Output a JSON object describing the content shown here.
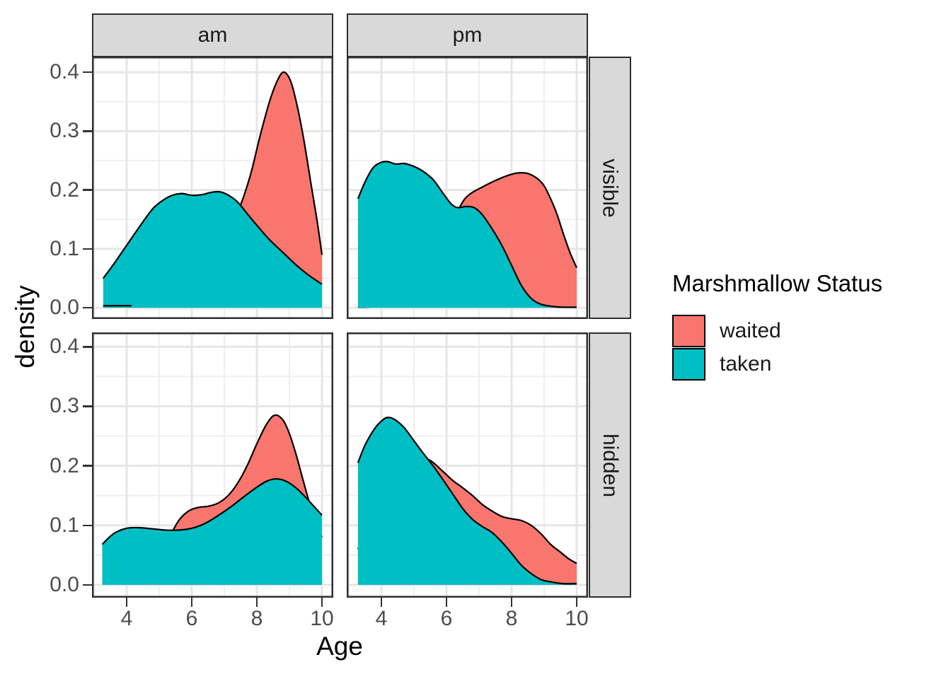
{
  "axes": {
    "x_label": "Age",
    "y_label": "density",
    "x_ticks": [
      {
        "label": "4",
        "value": 4
      },
      {
        "label": "6",
        "value": 6
      },
      {
        "label": "8",
        "value": 8
      },
      {
        "label": "10",
        "value": 10
      }
    ],
    "y_ticks": [
      {
        "label": "0.0",
        "value": 0.0
      },
      {
        "label": "0.1",
        "value": 0.1
      },
      {
        "label": "0.2",
        "value": 0.2
      },
      {
        "label": "0.3",
        "value": 0.3
      },
      {
        "label": "0.4",
        "value": 0.4
      }
    ]
  },
  "facets": {
    "col_labels": [
      "am",
      "pm"
    ],
    "row_labels": [
      "visible",
      "hidden"
    ]
  },
  "legend": {
    "title": "Marshmallow Status",
    "items": [
      {
        "label": "waited",
        "color": "#F8766D"
      },
      {
        "label": "taken",
        "color": "#00BFC4"
      }
    ]
  },
  "chart_data": {
    "type": "area",
    "subtype": "faceted overlapping density curves",
    "x_range_shown": [
      2.94,
      10.35
    ],
    "y_range_shown": [
      0,
      0.42
    ],
    "grid": {
      "x_major": [
        4,
        6,
        8,
        10
      ],
      "x_minor": [
        3,
        5,
        7,
        9
      ],
      "y_major": [
        0.0,
        0.1,
        0.2,
        0.3,
        0.4
      ],
      "y_minor": [
        0.05,
        0.15,
        0.25,
        0.35
      ]
    },
    "panels": [
      {
        "id": "am_visible",
        "col": 0,
        "row": 0,
        "facet_col": "am",
        "facet_row": "visible",
        "series": [
          {
            "name": "waited",
            "points": [
              [
                3.28,
                0.003
              ],
              [
                3.7,
                0.003
              ],
              [
                4.15,
                0.004
              ],
              [
                4.6,
                0.008
              ],
              [
                5.0,
                0.014
              ],
              [
                5.5,
                0.028
              ],
              [
                6.0,
                0.05
              ],
              [
                6.5,
                0.082
              ],
              [
                7.0,
                0.122
              ],
              [
                7.45,
                0.168
              ],
              [
                7.8,
                0.225
              ],
              [
                8.1,
                0.292
              ],
              [
                8.4,
                0.352
              ],
              [
                8.65,
                0.388
              ],
              [
                8.84,
                0.4
              ],
              [
                9.05,
                0.383
              ],
              [
                9.25,
                0.34
              ],
              [
                9.45,
                0.283
              ],
              [
                9.65,
                0.215
              ],
              [
                9.85,
                0.148
              ],
              [
                10.0,
                0.09
              ]
            ]
          },
          {
            "name": "taken",
            "points": [
              [
                3.28,
                0.05
              ],
              [
                3.6,
                0.074
              ],
              [
                4.0,
                0.106
              ],
              [
                4.4,
                0.138
              ],
              [
                4.8,
                0.168
              ],
              [
                5.1,
                0.182
              ],
              [
                5.4,
                0.191
              ],
              [
                5.7,
                0.194
              ],
              [
                6.0,
                0.191
              ],
              [
                6.3,
                0.192
              ],
              [
                6.6,
                0.196
              ],
              [
                6.85,
                0.197
              ],
              [
                7.1,
                0.192
              ],
              [
                7.4,
                0.18
              ],
              [
                7.7,
                0.16
              ],
              [
                8.0,
                0.14
              ],
              [
                8.4,
                0.115
              ],
              [
                8.8,
                0.094
              ],
              [
                9.2,
                0.073
              ],
              [
                9.6,
                0.055
              ],
              [
                10.0,
                0.04
              ]
            ]
          }
        ]
      },
      {
        "id": "pm_visible",
        "col": 1,
        "row": 0,
        "facet_col": "pm",
        "facet_row": "visible",
        "series": [
          {
            "name": "waited",
            "points": [
              [
                3.28,
                0.001
              ],
              [
                3.8,
                0.002
              ],
              [
                4.3,
                0.007
              ],
              [
                4.8,
                0.018
              ],
              [
                5.2,
                0.038
              ],
              [
                5.6,
                0.068
              ],
              [
                6.0,
                0.112
              ],
              [
                6.3,
                0.158
              ],
              [
                6.55,
                0.184
              ],
              [
                6.8,
                0.196
              ],
              [
                7.1,
                0.205
              ],
              [
                7.5,
                0.216
              ],
              [
                7.9,
                0.225
              ],
              [
                8.2,
                0.229
              ],
              [
                8.5,
                0.228
              ],
              [
                8.8,
                0.219
              ],
              [
                9.0,
                0.207
              ],
              [
                9.2,
                0.185
              ],
              [
                9.4,
                0.158
              ],
              [
                9.6,
                0.124
              ],
              [
                9.8,
                0.093
              ],
              [
                10.0,
                0.068
              ]
            ]
          },
          {
            "name": "taken",
            "points": [
              [
                3.28,
                0.185
              ],
              [
                3.5,
                0.214
              ],
              [
                3.75,
                0.238
              ],
              [
                4.0,
                0.247
              ],
              [
                4.2,
                0.248
              ],
              [
                4.45,
                0.244
              ],
              [
                4.7,
                0.245
              ],
              [
                5.0,
                0.24
              ],
              [
                5.3,
                0.231
              ],
              [
                5.6,
                0.217
              ],
              [
                5.9,
                0.194
              ],
              [
                6.15,
                0.176
              ],
              [
                6.35,
                0.17
              ],
              [
                6.6,
                0.172
              ],
              [
                6.85,
                0.17
              ],
              [
                7.1,
                0.158
              ],
              [
                7.4,
                0.134
              ],
              [
                7.7,
                0.106
              ],
              [
                8.0,
                0.072
              ],
              [
                8.3,
                0.038
              ],
              [
                8.6,
                0.016
              ],
              [
                8.9,
                0.006
              ],
              [
                9.3,
                0.002
              ],
              [
                9.6,
                0.001
              ],
              [
                10.0,
                0.001
              ]
            ]
          }
        ]
      },
      {
        "id": "am_hidden",
        "col": 0,
        "row": 1,
        "facet_col": "am",
        "facet_row": "hidden",
        "series": [
          {
            "name": "waited",
            "points": [
              [
                3.25,
                0.002
              ],
              [
                3.8,
                0.003
              ],
              [
                4.3,
                0.007
              ],
              [
                4.7,
                0.018
              ],
              [
                5.0,
                0.042
              ],
              [
                5.3,
                0.078
              ],
              [
                5.6,
                0.108
              ],
              [
                5.9,
                0.124
              ],
              [
                6.2,
                0.13
              ],
              [
                6.5,
                0.132
              ],
              [
                6.8,
                0.137
              ],
              [
                7.1,
                0.149
              ],
              [
                7.4,
                0.17
              ],
              [
                7.7,
                0.2
              ],
              [
                8.0,
                0.237
              ],
              [
                8.3,
                0.27
              ],
              [
                8.55,
                0.285
              ],
              [
                8.8,
                0.277
              ],
              [
                9.0,
                0.254
              ],
              [
                9.2,
                0.22
              ],
              [
                9.4,
                0.18
              ],
              [
                9.6,
                0.141
              ],
              [
                9.8,
                0.107
              ],
              [
                10.0,
                0.08
              ]
            ]
          },
          {
            "name": "taken",
            "points": [
              [
                3.25,
                0.068
              ],
              [
                3.6,
                0.086
              ],
              [
                4.0,
                0.095
              ],
              [
                4.4,
                0.096
              ],
              [
                4.8,
                0.094
              ],
              [
                5.2,
                0.092
              ],
              [
                5.6,
                0.092
              ],
              [
                6.0,
                0.095
              ],
              [
                6.4,
                0.103
              ],
              [
                6.8,
                0.116
              ],
              [
                7.2,
                0.131
              ],
              [
                7.6,
                0.148
              ],
              [
                8.0,
                0.164
              ],
              [
                8.3,
                0.174
              ],
              [
                8.6,
                0.178
              ],
              [
                8.9,
                0.174
              ],
              [
                9.2,
                0.163
              ],
              [
                9.5,
                0.147
              ],
              [
                9.75,
                0.132
              ],
              [
                10.0,
                0.117
              ]
            ]
          }
        ]
      },
      {
        "id": "pm_hidden",
        "col": 1,
        "row": 1,
        "facet_col": "pm",
        "facet_row": "hidden",
        "series": [
          {
            "name": "waited",
            "points": [
              [
                3.28,
                0.06
              ],
              [
                3.7,
                0.11
              ],
              [
                4.1,
                0.155
              ],
              [
                4.5,
                0.19
              ],
              [
                4.9,
                0.208
              ],
              [
                5.2,
                0.212
              ],
              [
                5.5,
                0.209
              ],
              [
                5.9,
                0.19
              ],
              [
                6.2,
                0.175
              ],
              [
                6.5,
                0.163
              ],
              [
                6.8,
                0.15
              ],
              [
                7.1,
                0.135
              ],
              [
                7.4,
                0.124
              ],
              [
                7.7,
                0.115
              ],
              [
                8.0,
                0.111
              ],
              [
                8.3,
                0.108
              ],
              [
                8.6,
                0.1
              ],
              [
                8.9,
                0.086
              ],
              [
                9.2,
                0.068
              ],
              [
                9.5,
                0.055
              ],
              [
                9.75,
                0.044
              ],
              [
                10.0,
                0.036
              ]
            ]
          },
          {
            "name": "taken",
            "points": [
              [
                3.28,
                0.205
              ],
              [
                3.5,
                0.235
              ],
              [
                3.8,
                0.263
              ],
              [
                4.0,
                0.275
              ],
              [
                4.17,
                0.281
              ],
              [
                4.4,
                0.278
              ],
              [
                4.7,
                0.264
              ],
              [
                5.0,
                0.242
              ],
              [
                5.3,
                0.22
              ],
              [
                5.6,
                0.199
              ],
              [
                5.9,
                0.176
              ],
              [
                6.2,
                0.152
              ],
              [
                6.5,
                0.128
              ],
              [
                6.8,
                0.11
              ],
              [
                7.1,
                0.098
              ],
              [
                7.4,
                0.088
              ],
              [
                7.7,
                0.072
              ],
              [
                8.0,
                0.053
              ],
              [
                8.3,
                0.033
              ],
              [
                8.6,
                0.019
              ],
              [
                8.9,
                0.009
              ],
              [
                9.2,
                0.005
              ],
              [
                9.6,
                0.002
              ],
              [
                10.0,
                0.002
              ]
            ]
          }
        ]
      }
    ],
    "annotations": [
      {
        "panel": "am_visible",
        "type": "baseline-tail-line",
        "x1": 3.28,
        "x2": 4.15,
        "y": 0.0035
      }
    ]
  }
}
